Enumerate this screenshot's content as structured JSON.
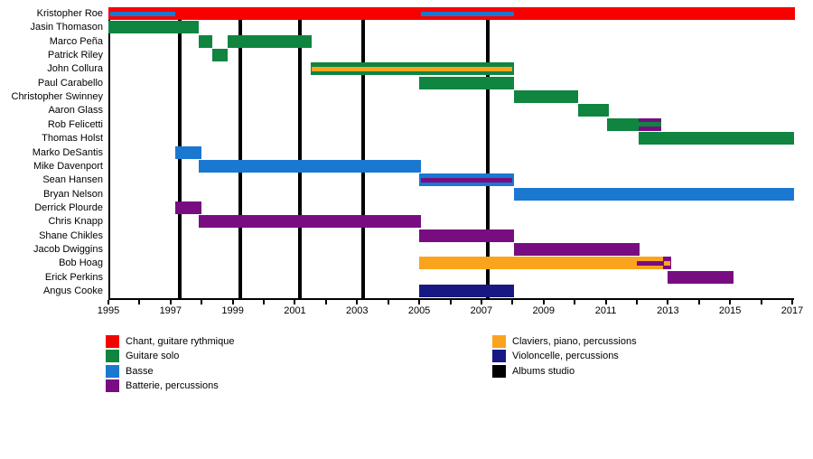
{
  "chart_data": {
    "type": "timeline",
    "description": "Band members timeline (Gantt-style), roles by color, studio albums as vertical lines",
    "x_axis": {
      "min": 1995,
      "max": 2017,
      "tick_step": 1,
      "label_step": 2,
      "tick_labels": [
        "1995",
        "1997",
        "1999",
        "2001",
        "2003",
        "2005",
        "2007",
        "2009",
        "2011",
        "2013",
        "2015",
        "2017"
      ]
    },
    "roles": {
      "chant": "#f70000",
      "guitare": "#0f8540",
      "basse": "#1b78d0",
      "batterie": "#780d82",
      "claviers": "#faa41d",
      "violoncelle": "#181884",
      "albums": "#000000"
    },
    "legend": {
      "column1": [
        {
          "role": "chant",
          "label": "Chant, guitare rythmique"
        },
        {
          "role": "guitare",
          "label": "Guitare solo"
        },
        {
          "role": "basse",
          "label": "Basse"
        },
        {
          "role": "batterie",
          "label": "Batterie, percussions"
        }
      ],
      "column2": [
        {
          "role": "claviers",
          "label": "Claviers, piano, percussions"
        },
        {
          "role": "violoncelle",
          "label": "Violoncelle, percussions"
        },
        {
          "role": "albums",
          "label": "Albums studio"
        }
      ]
    },
    "albums_studio_years": [
      1997.3,
      1999.25,
      2001.15,
      2003.2,
      2007.2
    ],
    "members": [
      {
        "name": "Kristopher Roe",
        "segments": [
          {
            "start": 1995,
            "end": 2017.1,
            "role": "chant"
          }
        ],
        "overlays": [
          {
            "start": 1995.05,
            "end": 1997.15,
            "role": "basse"
          },
          {
            "start": 2005.05,
            "end": 2008.05,
            "role": "basse"
          }
        ]
      },
      {
        "name": "Jasin Thomason",
        "segments": [
          {
            "start": 1995,
            "end": 1997.9,
            "role": "guitare"
          }
        ]
      },
      {
        "name": "Marco Peña",
        "segments": [
          {
            "start": 1997.9,
            "end": 1998.35,
            "role": "guitare"
          },
          {
            "start": 1998.85,
            "end": 2001.55,
            "role": "guitare"
          }
        ]
      },
      {
        "name": "Patrick Riley",
        "segments": [
          {
            "start": 1998.35,
            "end": 1998.85,
            "role": "guitare"
          }
        ]
      },
      {
        "name": "John Collura",
        "segments": [
          {
            "start": 2001.5,
            "end": 2008.05,
            "role": "guitare"
          }
        ],
        "overlays": [
          {
            "start": 2001.55,
            "end": 2008.0,
            "role": "claviers"
          }
        ]
      },
      {
        "name": "Paul Carabello",
        "segments": [
          {
            "start": 2005,
            "end": 2008.05,
            "role": "guitare"
          }
        ]
      },
      {
        "name": "Christopher Swinney",
        "segments": [
          {
            "start": 2008.05,
            "end": 2010.1,
            "role": "guitare"
          }
        ]
      },
      {
        "name": "Aaron Glass",
        "segments": [
          {
            "start": 2010.1,
            "end": 2011.1,
            "role": "guitare"
          }
        ]
      },
      {
        "name": "Rob Felicetti",
        "segments": [
          {
            "start": 2011.05,
            "end": 2012.05,
            "role": "guitare"
          },
          {
            "start": 2012.05,
            "end": 2012.8,
            "role": "batterie"
          }
        ],
        "overlays": [
          {
            "start": 2012.05,
            "end": 2012.8,
            "role": "guitare"
          }
        ]
      },
      {
        "name": "Thomas Holst",
        "segments": [
          {
            "start": 2012.05,
            "end": 2017.05,
            "role": "guitare"
          }
        ]
      },
      {
        "name": "Marko DeSantis",
        "segments": [
          {
            "start": 1997.15,
            "end": 1998.0,
            "role": "basse"
          }
        ]
      },
      {
        "name": "Mike Davenport",
        "segments": [
          {
            "start": 1997.9,
            "end": 2005.05,
            "role": "basse"
          }
        ]
      },
      {
        "name": "Sean Hansen",
        "segments": [
          {
            "start": 2005,
            "end": 2008.05,
            "role": "basse"
          }
        ],
        "overlays": [
          {
            "start": 2005.05,
            "end": 2008.0,
            "role": "batterie"
          }
        ]
      },
      {
        "name": "Bryan Nelson",
        "segments": [
          {
            "start": 2008.05,
            "end": 2017.05,
            "role": "basse"
          }
        ]
      },
      {
        "name": "Derrick Plourde",
        "segments": [
          {
            "start": 1997.15,
            "end": 1998.0,
            "role": "batterie"
          }
        ]
      },
      {
        "name": "Chris Knapp",
        "segments": [
          {
            "start": 1997.9,
            "end": 2005.05,
            "role": "batterie"
          }
        ]
      },
      {
        "name": "Shane Chikles",
        "segments": [
          {
            "start": 2005,
            "end": 2008.05,
            "role": "batterie"
          }
        ]
      },
      {
        "name": "Jacob Dwiggins",
        "segments": [
          {
            "start": 2008.05,
            "end": 2012.1,
            "role": "batterie"
          }
        ]
      },
      {
        "name": "Bob Hoag",
        "segments": [
          {
            "start": 2005,
            "end": 2012.85,
            "role": "claviers"
          },
          {
            "start": 2012.85,
            "end": 2013.1,
            "role": "batterie"
          }
        ],
        "overlays": [
          {
            "start": 2012.0,
            "end": 2012.85,
            "role": "batterie"
          },
          {
            "start": 2012.87,
            "end": 2013.08,
            "role": "claviers"
          }
        ]
      },
      {
        "name": "Erick Perkins",
        "segments": [
          {
            "start": 2013.0,
            "end": 2015.1,
            "role": "batterie"
          }
        ]
      },
      {
        "name": "Angus Cooke",
        "segments": [
          {
            "start": 2005,
            "end": 2008.05,
            "role": "violoncelle"
          }
        ]
      }
    ]
  }
}
